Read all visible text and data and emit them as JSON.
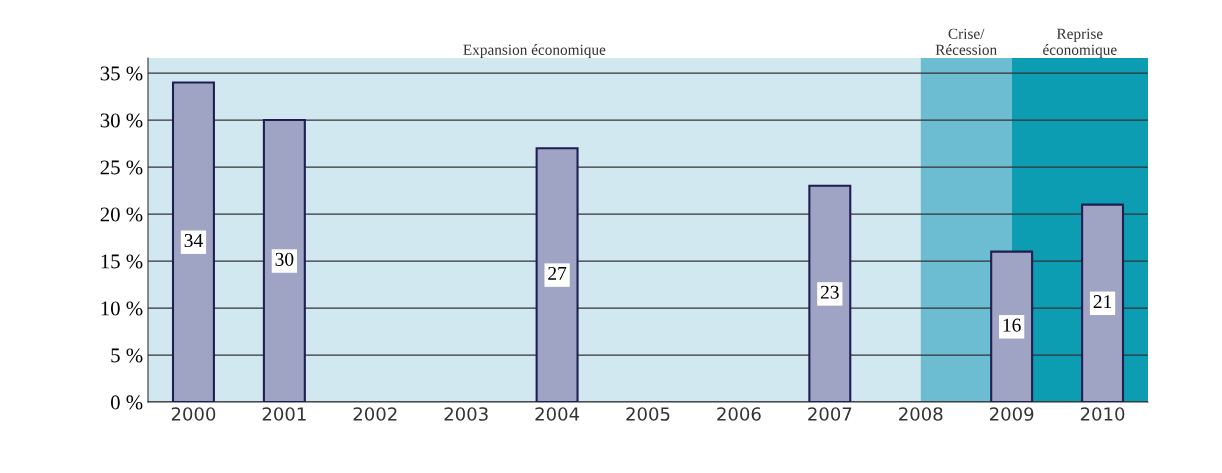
{
  "chart_data": {
    "type": "bar",
    "x": [
      2000,
      2001,
      2002,
      2003,
      2004,
      2005,
      2006,
      2007,
      2008,
      2009,
      2010
    ],
    "values": [
      34,
      30,
      null,
      null,
      27,
      null,
      null,
      23,
      null,
      16,
      21
    ],
    "color": "#9fa3c4",
    "data_labels": true,
    "xlim": [
      1999.5,
      2010.5
    ],
    "xticks": [
      2000,
      2001,
      2002,
      2003,
      2004,
      2005,
      2006,
      2007,
      2008,
      2009,
      2010
    ],
    "ylim": [
      0,
      36.6
    ],
    "yticks": [
      {
        "value": 0,
        "label": "0 %"
      },
      {
        "value": 5,
        "label": "5 %"
      },
      {
        "value": 10,
        "label": "10 %"
      },
      {
        "value": 15,
        "label": "15 %"
      },
      {
        "value": 20,
        "label": "20 %"
      },
      {
        "value": 25,
        "label": "25 %"
      },
      {
        "value": 30,
        "label": "30 %"
      },
      {
        "value": 35,
        "label": "35 %"
      }
    ],
    "grid": "y",
    "bands": [
      {
        "axis": "x",
        "from": 1999.5,
        "to": 2008,
        "label": "Expansion économique",
        "color": "#d2e8f0"
      },
      {
        "axis": "x",
        "from": 2008,
        "to": 2009,
        "label": "Crise/\nRécession",
        "color": "#6cbdd2"
      },
      {
        "axis": "x",
        "from": 2009,
        "to": 2010.5,
        "label": "Reprise\néconomique",
        "color": "#0d9db2"
      }
    ]
  }
}
